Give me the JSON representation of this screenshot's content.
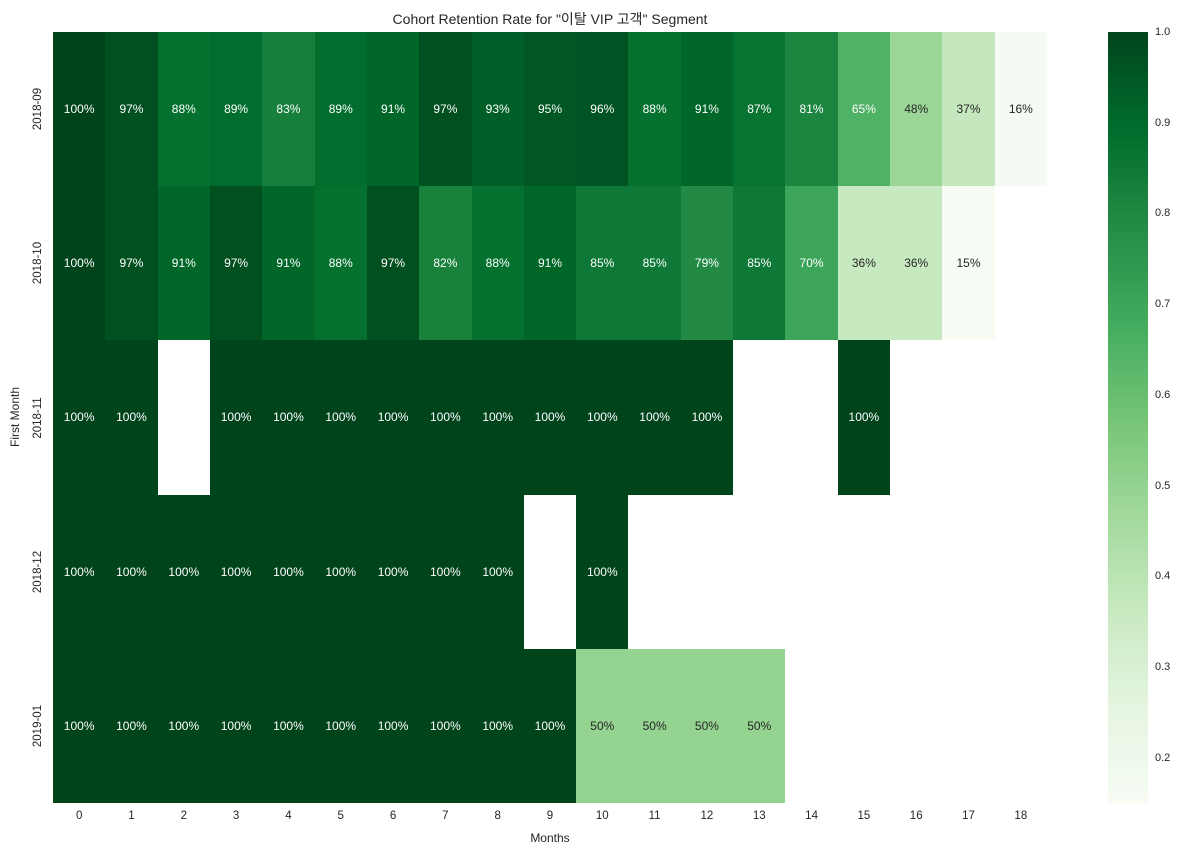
{
  "chart_data": {
    "type": "heatmap",
    "title": "Cohort Retention Rate for \"이탈 VIP 고객\" Segment",
    "xlabel": "Months",
    "ylabel": "First Month",
    "x_ticks": [
      "0",
      "1",
      "2",
      "3",
      "4",
      "5",
      "6",
      "7",
      "8",
      "9",
      "10",
      "11",
      "12",
      "13",
      "14",
      "15",
      "16",
      "17",
      "18"
    ],
    "y_ticks": [
      "2018-09",
      "2018-10",
      "2018-11",
      "2018-12",
      "2019-01"
    ],
    "values_percent": [
      [
        100,
        97,
        88,
        89,
        83,
        89,
        91,
        97,
        93,
        95,
        96,
        88,
        91,
        87,
        81,
        65,
        48,
        37,
        16
      ],
      [
        100,
        97,
        91,
        97,
        91,
        88,
        97,
        82,
        88,
        91,
        85,
        85,
        79,
        85,
        70,
        36,
        36,
        15,
        null
      ],
      [
        100,
        100,
        null,
        100,
        100,
        100,
        100,
        100,
        100,
        100,
        100,
        100,
        100,
        null,
        null,
        100,
        null,
        null,
        null
      ],
      [
        100,
        100,
        100,
        100,
        100,
        100,
        100,
        100,
        100,
        null,
        100,
        null,
        null,
        null,
        null,
        null,
        null,
        null,
        null
      ],
      [
        100,
        100,
        100,
        100,
        100,
        100,
        100,
        100,
        100,
        100,
        50,
        50,
        50,
        50,
        null,
        null,
        null,
        null,
        null
      ]
    ],
    "annotation_suffix": "%",
    "vmin": 0.15,
    "vmax": 1.0,
    "colorbar_tick_labels": [
      "1.0",
      "0.9",
      "0.8",
      "0.7",
      "0.6",
      "0.5",
      "0.4",
      "0.3",
      "0.2"
    ],
    "cell_colors": {
      "100": "#00441b",
      "97": "#005020",
      "96": "#005322",
      "95": "#005723",
      "93": "#005f26",
      "91": "#006729",
      "89": "#016e2d",
      "88": "#04712f",
      "87": "#087431",
      "85": "#0e7936",
      "83": "#157f3b",
      "82": "#18823d",
      "81": "#1c853f",
      "79": "#228a44",
      "70": "#3ca559",
      "65": "#50b264",
      "50": "#94d390",
      "48": "#9cd697",
      "37": "#c4e7bd",
      "36": "#c7e9c0",
      "16": "#f5fbf3",
      "15": "#f7fcf5"
    },
    "text_colors": {
      "light": "#ffffff",
      "dark": "#262626"
    },
    "white_text_min": 65,
    "empty_cell_color": "#ffffff",
    "colorbar_gradient": [
      {
        "pos": 0,
        "color": "#f7fcf5"
      },
      {
        "pos": 12.5,
        "color": "#e5f5e0"
      },
      {
        "pos": 25,
        "color": "#c7e9c0"
      },
      {
        "pos": 37.5,
        "color": "#a1d99b"
      },
      {
        "pos": 50,
        "color": "#74c476"
      },
      {
        "pos": 62.5,
        "color": "#41ab5d"
      },
      {
        "pos": 75,
        "color": "#238b45"
      },
      {
        "pos": 87.5,
        "color": "#006d2c"
      },
      {
        "pos": 100,
        "color": "#00441b"
      }
    ]
  }
}
